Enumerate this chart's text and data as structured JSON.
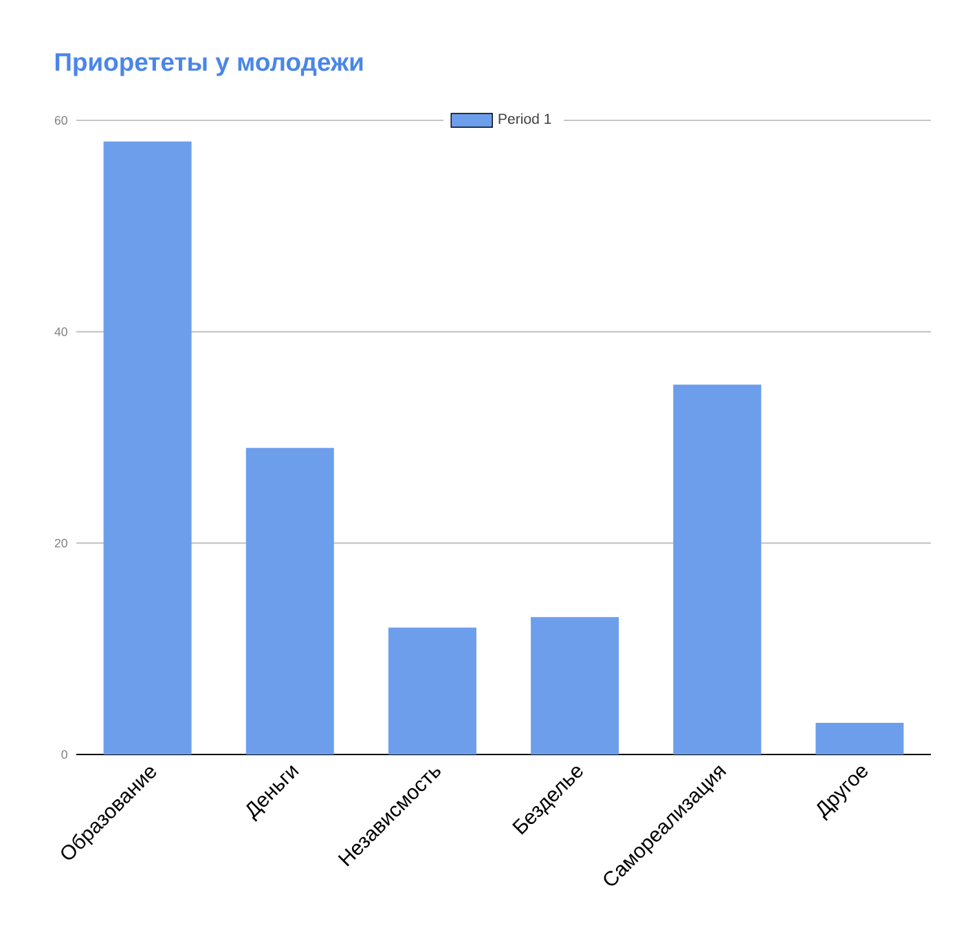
{
  "chart_data": {
    "type": "bar",
    "title": "Приорететы у молодежи",
    "categories": [
      "Образование",
      "Деньги",
      "Независмость",
      "Безделье",
      "Самореализация",
      "Другое"
    ],
    "series": [
      {
        "name": "Period 1",
        "color": "#6d9eeb",
        "values": [
          58,
          29,
          12,
          13,
          35,
          3
        ]
      }
    ],
    "ylim": [
      0,
      60
    ],
    "yticks": [
      0,
      20,
      40,
      60
    ],
    "grid": "y",
    "legend": "top"
  }
}
